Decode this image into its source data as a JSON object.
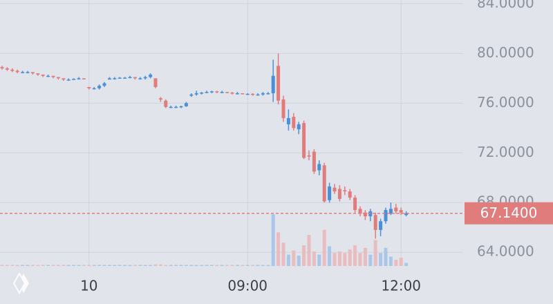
{
  "chart_data": {
    "type": "candlestick",
    "x": [
      null,
      null,
      null,
      null,
      null,
      null,
      null,
      null,
      null,
      null,
      null,
      null,
      null,
      null,
      null,
      null,
      null,
      "10",
      null,
      null,
      null,
      null,
      null,
      null,
      null,
      null,
      null,
      null,
      null,
      null,
      null,
      null,
      null,
      null,
      null,
      null,
      null,
      null,
      null,
      null,
      null,
      null,
      null,
      null,
      null,
      null,
      null,
      null,
      "09:00",
      null,
      null,
      null,
      null,
      null,
      null,
      null,
      null,
      null,
      null,
      null,
      null,
      null,
      null,
      null,
      null,
      null,
      null,
      null,
      null,
      null,
      null,
      null,
      null,
      null,
      null,
      null,
      null,
      null,
      "12:00",
      null
    ],
    "ohlc": [
      [
        78.9,
        79.0,
        78.7,
        78.8
      ],
      [
        78.8,
        78.9,
        78.6,
        78.7
      ],
      [
        78.7,
        78.8,
        78.5,
        78.6
      ],
      [
        78.6,
        78.7,
        78.4,
        78.5
      ],
      [
        78.5,
        78.6,
        78.4,
        78.5
      ],
      [
        78.5,
        78.6,
        78.4,
        78.5
      ],
      [
        78.5,
        78.5,
        78.3,
        78.4
      ],
      [
        78.4,
        78.4,
        78.2,
        78.3
      ],
      [
        78.3,
        78.3,
        78.1,
        78.2
      ],
      [
        78.2,
        78.3,
        78.1,
        78.2
      ],
      [
        78.2,
        78.2,
        78.0,
        78.1
      ],
      [
        78.1,
        78.1,
        77.9,
        78.0
      ],
      [
        78.0,
        78.0,
        77.8,
        77.9
      ],
      [
        77.9,
        78.0,
        77.8,
        77.9
      ],
      [
        77.9,
        78.0,
        77.9,
        77.95
      ],
      [
        77.95,
        78.1,
        77.9,
        78.0
      ],
      [
        78.0,
        78.0,
        77.9,
        77.95
      ],
      [
        77.3,
        77.3,
        77.1,
        77.2
      ],
      [
        77.2,
        77.3,
        77.1,
        77.2
      ],
      [
        77.2,
        77.5,
        77.1,
        77.4
      ],
      [
        77.4,
        77.7,
        77.3,
        77.6
      ],
      [
        77.9,
        78.1,
        77.9,
        78.0
      ],
      [
        78.0,
        78.1,
        77.9,
        78.0
      ],
      [
        78.0,
        78.1,
        78.0,
        78.05
      ],
      [
        78.05,
        78.1,
        78.0,
        78.05
      ],
      [
        78.05,
        78.2,
        78.0,
        78.1
      ],
      [
        78.1,
        78.1,
        77.9,
        78.0
      ],
      [
        78.0,
        78.1,
        77.9,
        78.0
      ],
      [
        78.0,
        78.2,
        77.9,
        78.1
      ],
      [
        78.1,
        78.4,
        78.0,
        78.3
      ],
      [
        78.0,
        78.0,
        77.2,
        77.3
      ],
      [
        76.4,
        76.5,
        76.1,
        76.3
      ],
      [
        76.2,
        76.3,
        75.6,
        75.7
      ],
      [
        75.7,
        75.8,
        75.6,
        75.7
      ],
      [
        75.7,
        75.8,
        75.6,
        75.7
      ],
      [
        75.7,
        75.8,
        75.6,
        75.75
      ],
      [
        75.75,
        76.1,
        75.7,
        76.0
      ],
      [
        76.6,
        76.8,
        76.5,
        76.7
      ],
      [
        76.7,
        77.0,
        76.6,
        76.8
      ],
      [
        76.8,
        76.9,
        76.7,
        76.85
      ],
      [
        76.85,
        77.0,
        76.8,
        76.9
      ],
      [
        76.9,
        77.0,
        76.8,
        76.95
      ],
      [
        76.95,
        77.0,
        76.8,
        76.9
      ],
      [
        76.9,
        77.0,
        76.8,
        76.9
      ],
      [
        76.9,
        76.9,
        76.8,
        76.85
      ],
      [
        76.85,
        76.9,
        76.7,
        76.8
      ],
      [
        76.8,
        76.9,
        76.7,
        76.8
      ],
      [
        76.8,
        76.8,
        76.7,
        76.75
      ],
      [
        76.75,
        76.8,
        76.7,
        76.75
      ],
      [
        76.75,
        76.8,
        76.6,
        76.7
      ],
      [
        76.7,
        76.8,
        76.6,
        76.7
      ],
      [
        76.7,
        76.9,
        76.6,
        76.8
      ],
      [
        76.8,
        76.9,
        76.7,
        76.8
      ],
      [
        76.8,
        79.5,
        76.1,
        78.2
      ],
      [
        79.0,
        80.0,
        75.9,
        76.2
      ],
      [
        76.3,
        76.6,
        74.5,
        74.8
      ],
      [
        74.3,
        75.5,
        73.8,
        74.8
      ],
      [
        74.9,
        75.2,
        73.8,
        74.0
      ],
      [
        73.9,
        74.5,
        73.5,
        74.3
      ],
      [
        74.4,
        74.6,
        71.5,
        71.6
      ],
      [
        71.8,
        72.2,
        71.4,
        71.7
      ],
      [
        72.1,
        72.3,
        70.3,
        70.5
      ],
      [
        70.6,
        71.4,
        70.2,
        71.1
      ],
      [
        71.0,
        71.2,
        68.0,
        68.1
      ],
      [
        68.2,
        69.6,
        68.0,
        69.3
      ],
      [
        69.2,
        69.5,
        68.7,
        68.9
      ],
      [
        69.1,
        69.4,
        68.1,
        68.3
      ],
      [
        69.0,
        69.3,
        68.6,
        68.9
      ],
      [
        68.9,
        69.1,
        68.2,
        68.4
      ],
      [
        68.4,
        68.6,
        67.2,
        67.4
      ],
      [
        67.5,
        67.7,
        66.9,
        67.1
      ],
      [
        67.2,
        67.4,
        66.6,
        66.9
      ],
      [
        66.9,
        67.5,
        66.5,
        67.3
      ],
      [
        67.0,
        67.2,
        65.1,
        65.8
      ],
      [
        65.8,
        66.7,
        65.3,
        66.5
      ],
      [
        66.5,
        67.6,
        66.3,
        67.4
      ],
      [
        67.1,
        68.0,
        67.0,
        67.5
      ],
      [
        67.6,
        67.9,
        67.1,
        67.3
      ],
      [
        67.4,
        67.6,
        67.0,
        67.2
      ],
      [
        67.0,
        67.3,
        66.9,
        67.14
      ]
    ],
    "volume": [
      2,
      2,
      2,
      2,
      2,
      2,
      2,
      2,
      2,
      2,
      2,
      2,
      2,
      2,
      2,
      2,
      2,
      2,
      2,
      2,
      2,
      2,
      2,
      2,
      2,
      2,
      2,
      2,
      2,
      2,
      3,
      3,
      2,
      2,
      2,
      2,
      2,
      2,
      2,
      2,
      2,
      2,
      2,
      2,
      2,
      2,
      2,
      2,
      2,
      2,
      2,
      2,
      2,
      100,
      65,
      45,
      22,
      30,
      20,
      40,
      60,
      28,
      22,
      70,
      38,
      25,
      28,
      25,
      32,
      40,
      25,
      35,
      22,
      50,
      25,
      35,
      18,
      12,
      16,
      6
    ],
    "volume_lim": [
      0,
      100
    ],
    "up_color": "#4a8fd8",
    "down_color": "#e07c7c",
    "volume_up_color": "#aac6e8",
    "volume_down_color": "#e9bcc0",
    "ylim": [
      62.9,
      84.3
    ],
    "yticks": [
      {
        "value": 64,
        "label": "64.0000"
      },
      {
        "value": 68,
        "label": "68.0000"
      },
      {
        "value": 72,
        "label": "72.0000"
      },
      {
        "value": 76,
        "label": "76.0000"
      },
      {
        "value": 80,
        "label": "80.0000"
      },
      {
        "value": 84,
        "label": "84.0000"
      }
    ],
    "last_price": {
      "value": 67.14,
      "label": "67.1400"
    },
    "grid": true
  }
}
